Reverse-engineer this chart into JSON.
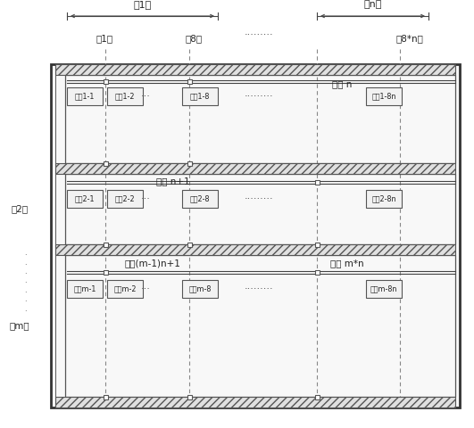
{
  "fig_width": 5.31,
  "fig_height": 4.8,
  "dpi": 100,
  "bg_color": "#ffffff",
  "title_group1": "第1组",
  "title_groupn": "第n组",
  "col1_label": "第1列",
  "col8_label": "第8列",
  "col8n_label": "第8*n列",
  "row2_label": "第2行",
  "rowm_label": "第m行",
  "chip_n": "芯片 n",
  "chip_n1": "芯片 n+1",
  "chip_mn1": "芯片(m-1)n+1",
  "chip_mn": "芯片 m*n",
  "p11": "分区1-1",
  "p12": "分区1-2",
  "p18": "分区1-8",
  "p18n": "分区1-8n",
  "p21": "分区2-1",
  "p22": "分区2-2",
  "p28": "分区2-8",
  "p28n": "分区2-8n",
  "pm1": "分区m-1",
  "pm2": "分区m-2",
  "pm8": "分区m-8",
  "pm8n": "分区m-8n",
  "dots3": "···",
  "dots9": "·········",
  "vdots": "·\n·\n·\n·\n·\n·\n·",
  "lc": "#444444",
  "ec": "#555555",
  "hatch_fc": "#e0e0e0",
  "box_fc": "#f2f2f2",
  "outer_fc": "#f8f8f8"
}
